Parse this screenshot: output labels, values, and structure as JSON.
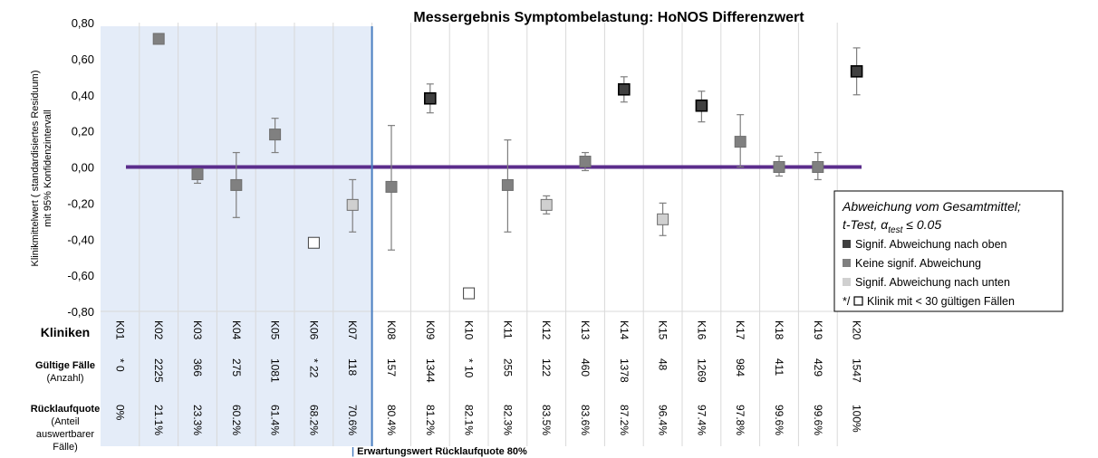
{
  "chart_data": {
    "type": "scatter",
    "title": "Messergebnis Symptombelastung: HoNOS Differenzwert",
    "ylabel_line1": "Klinikmittelwert ( standardisiertes Residuum)",
    "ylabel_line2": "mit 95% Konfidenzintervall",
    "ylim": [
      -0.8,
      0.8
    ],
    "yticks": [
      "0,80",
      "0,60",
      "0,40",
      "0,20",
      "0,00",
      "-0,20",
      "-0,40",
      "-0,60",
      "-0,80"
    ],
    "ytick_values": [
      0.8,
      0.6,
      0.4,
      0.2,
      0.0,
      -0.2,
      -0.4,
      -0.6,
      -0.8
    ],
    "reference_line": 0.0,
    "grid": "vertical",
    "categories": [
      "K01",
      "K02",
      "K03",
      "K04",
      "K05",
      "K06",
      "K07",
      "K08",
      "K09",
      "K10",
      "K11",
      "K12",
      "K13",
      "K14",
      "K15",
      "K16",
      "K17",
      "K18",
      "K19",
      "K20"
    ],
    "points": [
      {
        "id": "K01",
        "value": null,
        "low": null,
        "high": null,
        "class": "none"
      },
      {
        "id": "K02",
        "value": 0.71,
        "low": null,
        "high": null,
        "class": "keine"
      },
      {
        "id": "K03",
        "value": -0.04,
        "low": -0.09,
        "high": -0.01,
        "class": "keine"
      },
      {
        "id": "K04",
        "value": -0.1,
        "low": -0.28,
        "high": 0.08,
        "class": "keine"
      },
      {
        "id": "K05",
        "value": 0.18,
        "low": 0.08,
        "high": 0.27,
        "class": "keine"
      },
      {
        "id": "K06",
        "value": -0.42,
        "low": null,
        "high": null,
        "class": "klein"
      },
      {
        "id": "K07",
        "value": -0.21,
        "low": -0.36,
        "high": -0.07,
        "class": "unten"
      },
      {
        "id": "K08",
        "value": -0.11,
        "low": -0.46,
        "high": 0.23,
        "class": "keine"
      },
      {
        "id": "K09",
        "value": 0.38,
        "low": 0.3,
        "high": 0.46,
        "class": "oben"
      },
      {
        "id": "K10",
        "value": -0.7,
        "low": null,
        "high": null,
        "class": "klein"
      },
      {
        "id": "K11",
        "value": -0.1,
        "low": -0.36,
        "high": 0.15,
        "class": "keine"
      },
      {
        "id": "K12",
        "value": -0.21,
        "low": -0.26,
        "high": -0.16,
        "class": "unten"
      },
      {
        "id": "K13",
        "value": 0.03,
        "low": -0.02,
        "high": 0.08,
        "class": "keine"
      },
      {
        "id": "K14",
        "value": 0.43,
        "low": 0.36,
        "high": 0.5,
        "class": "oben"
      },
      {
        "id": "K15",
        "value": -0.29,
        "low": -0.38,
        "high": -0.2,
        "class": "unten"
      },
      {
        "id": "K16",
        "value": 0.34,
        "low": 0.25,
        "high": 0.42,
        "class": "oben"
      },
      {
        "id": "K17",
        "value": 0.14,
        "low": 0.0,
        "high": 0.29,
        "class": "keine"
      },
      {
        "id": "K18",
        "value": 0.0,
        "low": -0.05,
        "high": 0.06,
        "class": "keine"
      },
      {
        "id": "K19",
        "value": 0.0,
        "low": -0.07,
        "high": 0.08,
        "class": "keine"
      },
      {
        "id": "K20",
        "value": 0.53,
        "low": 0.4,
        "high": 0.66,
        "class": "oben"
      }
    ],
    "colors": {
      "oben": "#404040",
      "keine": "#808080",
      "unten": "#d0d0d0",
      "klein": "#ffffff",
      "refline": "#5b2d8c",
      "shade": "#e4ecf8",
      "expected_line": "#4a7fc1"
    },
    "legend": {
      "title_line1": "Abweichung vom Gesamtmittel;",
      "title_line2_prefix": "t-Test, α",
      "title_line2_sub": "test",
      "title_line2_suffix": " ≤ 0.05",
      "items": [
        {
          "key": "oben",
          "label": "Signif. Abweichung nach oben"
        },
        {
          "key": "keine",
          "label": "Keine signif. Abweichung"
        },
        {
          "key": "unten",
          "label": "Signif. Abweichung nach unten"
        },
        {
          "key": "klein",
          "prefix": "*/",
          "label": "Klinik mit < 30 gültigen Fällen"
        }
      ]
    },
    "table": {
      "row_kliniken": "Kliniken",
      "row_faelle_title": "Gültige Fälle",
      "row_faelle_sub": "(Anzahl)",
      "row_quote_title": "Rücklaufquote",
      "row_quote_sub1": "(Anteil",
      "row_quote_sub2": "auswertbarer",
      "row_quote_sub3": "Fälle)",
      "faelle": [
        "* 0",
        "2225",
        "366",
        "275",
        "1081",
        "* 22",
        "118",
        "157",
        "1344",
        "* 10",
        "255",
        "122",
        "460",
        "1378",
        "48",
        "1269",
        "984",
        "411",
        "429",
        "1547"
      ],
      "quote": [
        "0%",
        "21.1%",
        "23.3%",
        "60.2%",
        "61.4%",
        "68.2%",
        "70.6%",
        "80.4%",
        "81.2%",
        "82.1%",
        "82.3%",
        "83.5%",
        "83.6%",
        "87.2%",
        "96.4%",
        "97.4%",
        "97.8%",
        "99.6%",
        "99.6%",
        "100%"
      ]
    },
    "expected_note": "Erwartungswert Rücklaufquote 80%",
    "expected_after_index": 7
  }
}
